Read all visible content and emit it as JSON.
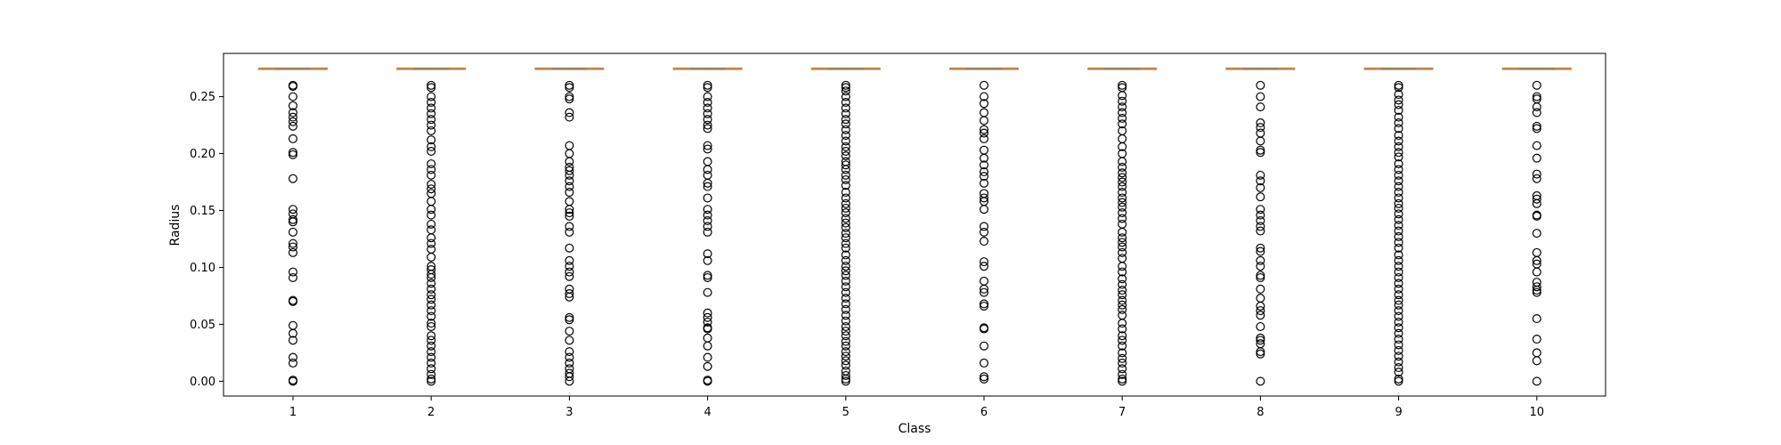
{
  "chart_data": {
    "type": "box",
    "xlabel": "Class",
    "ylabel": "Radius",
    "categories": [
      "1",
      "2",
      "3",
      "4",
      "5",
      "6",
      "7",
      "8",
      "9",
      "10"
    ],
    "ylim": [
      -0.013,
      0.288
    ],
    "yticks": [
      0.0,
      0.05,
      0.1,
      0.15,
      0.2,
      0.25
    ],
    "ytick_labels": [
      "0.00",
      "0.05",
      "0.10",
      "0.15",
      "0.20",
      "0.25"
    ],
    "grid": false,
    "box_color": "#c0864c",
    "median_color": "#a08060",
    "flier_edge_color": "#000000",
    "boxes": [
      {
        "category": "1",
        "value": 0.2745
      },
      {
        "category": "2",
        "value": 0.2745
      },
      {
        "category": "3",
        "value": 0.2745
      },
      {
        "category": "4",
        "value": 0.2745
      },
      {
        "category": "5",
        "value": 0.2745
      },
      {
        "category": "6",
        "value": 0.2745
      },
      {
        "category": "7",
        "value": 0.2745
      },
      {
        "category": "8",
        "value": 0.2745
      },
      {
        "category": "9",
        "value": 0.2745
      },
      {
        "category": "10",
        "value": 0.2745
      }
    ],
    "outliers": [
      {
        "category": "1",
        "values": [
          0.26,
          0.259,
          0.25,
          0.242,
          0.236,
          0.232,
          0.228,
          0.224,
          0.213,
          0.201,
          0.199,
          0.178,
          0.151,
          0.147,
          0.142,
          0.14,
          0.131,
          0.121,
          0.118,
          0.113,
          0.096,
          0.091,
          0.071,
          0.07,
          0.049,
          0.042,
          0.036,
          0.021,
          0.016,
          0.001,
          0.0
        ]
      },
      {
        "category": "2",
        "values": [
          0.26,
          0.258,
          0.25,
          0.245,
          0.24,
          0.235,
          0.23,
          0.225,
          0.22,
          0.212,
          0.206,
          0.202,
          0.191,
          0.186,
          0.181,
          0.173,
          0.169,
          0.165,
          0.158,
          0.151,
          0.146,
          0.138,
          0.133,
          0.126,
          0.121,
          0.116,
          0.109,
          0.101,
          0.098,
          0.094,
          0.091,
          0.086,
          0.081,
          0.076,
          0.072,
          0.067,
          0.062,
          0.057,
          0.051,
          0.048,
          0.04,
          0.036,
          0.031,
          0.026,
          0.021,
          0.016,
          0.011,
          0.006,
          0.002,
          0.0
        ]
      },
      {
        "category": "3",
        "values": [
          0.26,
          0.258,
          0.25,
          0.248,
          0.236,
          0.232,
          0.207,
          0.2,
          0.193,
          0.188,
          0.185,
          0.181,
          0.176,
          0.171,
          0.166,
          0.158,
          0.151,
          0.148,
          0.145,
          0.136,
          0.131,
          0.117,
          0.106,
          0.101,
          0.096,
          0.092,
          0.081,
          0.077,
          0.074,
          0.056,
          0.054,
          0.044,
          0.036,
          0.026,
          0.021,
          0.016,
          0.011,
          0.007,
          0.004,
          0.0
        ]
      },
      {
        "category": "4",
        "values": [
          0.26,
          0.258,
          0.25,
          0.245,
          0.24,
          0.235,
          0.23,
          0.225,
          0.222,
          0.207,
          0.204,
          0.193,
          0.186,
          0.181,
          0.174,
          0.171,
          0.161,
          0.151,
          0.146,
          0.141,
          0.136,
          0.131,
          0.112,
          0.106,
          0.093,
          0.091,
          0.078,
          0.06,
          0.056,
          0.052,
          0.047,
          0.046,
          0.038,
          0.031,
          0.021,
          0.013,
          0.001,
          0.0
        ]
      },
      {
        "category": "5",
        "values": [
          0.26,
          0.258,
          0.255,
          0.25,
          0.245,
          0.24,
          0.235,
          0.23,
          0.226,
          0.221,
          0.216,
          0.211,
          0.206,
          0.202,
          0.198,
          0.193,
          0.19,
          0.186,
          0.181,
          0.177,
          0.172,
          0.166,
          0.161,
          0.156,
          0.152,
          0.148,
          0.143,
          0.139,
          0.135,
          0.13,
          0.126,
          0.121,
          0.117,
          0.111,
          0.106,
          0.101,
          0.097,
          0.093,
          0.088,
          0.083,
          0.078,
          0.073,
          0.068,
          0.063,
          0.058,
          0.053,
          0.048,
          0.044,
          0.04,
          0.035,
          0.031,
          0.026,
          0.022,
          0.018,
          0.014,
          0.009,
          0.005,
          0.002,
          0.0
        ]
      },
      {
        "category": "6",
        "values": [
          0.26,
          0.25,
          0.244,
          0.236,
          0.229,
          0.221,
          0.218,
          0.213,
          0.203,
          0.196,
          0.19,
          0.184,
          0.18,
          0.174,
          0.165,
          0.161,
          0.158,
          0.151,
          0.136,
          0.131,
          0.123,
          0.105,
          0.101,
          0.088,
          0.081,
          0.078,
          0.068,
          0.066,
          0.047,
          0.046,
          0.031,
          0.016,
          0.004,
          0.002
        ]
      },
      {
        "category": "7",
        "values": [
          0.26,
          0.258,
          0.251,
          0.246,
          0.241,
          0.236,
          0.231,
          0.226,
          0.22,
          0.213,
          0.206,
          0.2,
          0.193,
          0.188,
          0.183,
          0.179,
          0.175,
          0.171,
          0.166,
          0.161,
          0.157,
          0.153,
          0.148,
          0.143,
          0.138,
          0.131,
          0.126,
          0.122,
          0.118,
          0.113,
          0.108,
          0.101,
          0.096,
          0.09,
          0.085,
          0.08,
          0.076,
          0.071,
          0.067,
          0.063,
          0.058,
          0.051,
          0.046,
          0.04,
          0.036,
          0.031,
          0.025,
          0.02,
          0.016,
          0.011,
          0.006,
          0.002,
          0.0
        ]
      },
      {
        "category": "8",
        "values": [
          0.26,
          0.25,
          0.241,
          0.227,
          0.223,
          0.218,
          0.211,
          0.203,
          0.201,
          0.181,
          0.176,
          0.17,
          0.162,
          0.151,
          0.146,
          0.141,
          0.136,
          0.132,
          0.117,
          0.114,
          0.106,
          0.101,
          0.093,
          0.091,
          0.081,
          0.073,
          0.066,
          0.062,
          0.058,
          0.048,
          0.038,
          0.036,
          0.033,
          0.026,
          0.024,
          0.0
        ]
      },
      {
        "category": "9",
        "values": [
          0.26,
          0.258,
          0.252,
          0.247,
          0.243,
          0.238,
          0.232,
          0.227,
          0.222,
          0.216,
          0.211,
          0.206,
          0.201,
          0.197,
          0.191,
          0.186,
          0.181,
          0.176,
          0.171,
          0.166,
          0.161,
          0.156,
          0.152,
          0.147,
          0.142,
          0.137,
          0.132,
          0.127,
          0.122,
          0.117,
          0.111,
          0.106,
          0.101,
          0.096,
          0.091,
          0.086,
          0.081,
          0.076,
          0.071,
          0.067,
          0.062,
          0.057,
          0.052,
          0.047,
          0.042,
          0.037,
          0.032,
          0.027,
          0.022,
          0.017,
          0.012,
          0.008,
          0.002,
          0.0
        ]
      },
      {
        "category": "10",
        "values": [
          0.26,
          0.25,
          0.248,
          0.241,
          0.236,
          0.224,
          0.222,
          0.207,
          0.196,
          0.182,
          0.178,
          0.163,
          0.16,
          0.156,
          0.146,
          0.145,
          0.13,
          0.113,
          0.106,
          0.103,
          0.096,
          0.087,
          0.083,
          0.08,
          0.078,
          0.055,
          0.037,
          0.025,
          0.018,
          0.0
        ]
      }
    ]
  }
}
